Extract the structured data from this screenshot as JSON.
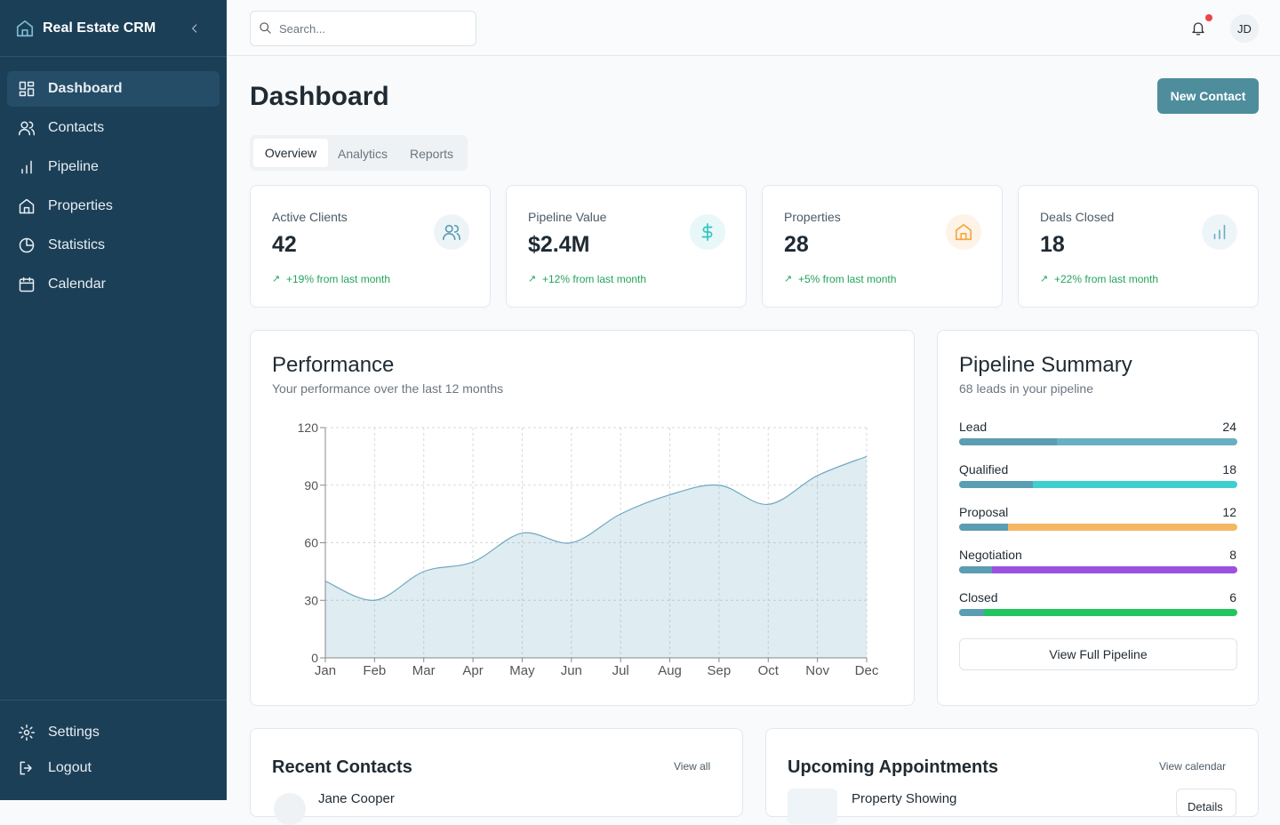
{
  "sidebar": {
    "brand": "Real Estate CRM",
    "nav": [
      "Dashboard",
      "Contacts",
      "Pipeline",
      "Properties",
      "Statistics",
      "Calendar"
    ],
    "footer": [
      "Settings",
      "Logout"
    ]
  },
  "topbar": {
    "search_placeholder": "Search...",
    "avatar": "JD"
  },
  "header": {
    "title": "Dashboard",
    "button": "New Contact"
  },
  "tabs": [
    "Overview",
    "Analytics",
    "Reports"
  ],
  "stats": [
    {
      "label": "Active Clients",
      "value": 42,
      "change": "+19% from last month"
    },
    {
      "label": "Pipeline Value",
      "value": "$2.4M",
      "change": "+12% from last month"
    },
    {
      "label": "Properties",
      "value": 28,
      "change": "+5% from last month"
    },
    {
      "label": "Deals Closed",
      "value": 18,
      "change": "+22% from last month"
    }
  ],
  "chart_data": {
    "type": "area",
    "title": "Performance",
    "subtitle": "Your performance over the last 12 months",
    "categories": [
      "Jan",
      "Feb",
      "Mar",
      "Apr",
      "May",
      "Jun",
      "Jul",
      "Aug",
      "Sep",
      "Oct",
      "Nov",
      "Dec"
    ],
    "values": [
      40,
      30,
      45,
      50,
      65,
      60,
      75,
      85,
      90,
      80,
      95,
      105
    ],
    "color": "#6fa8c2",
    "ylim": [
      0,
      120
    ],
    "yticks": [
      0,
      30,
      60,
      90,
      120
    ],
    "grid": true
  },
  "pipeline": {
    "title": "Pipeline Summary",
    "subtitle": "68 leads in your pipeline",
    "stages": [
      {
        "name": "Lead",
        "count": 24,
        "color": "#6aaec4"
      },
      {
        "name": "Qualified",
        "count": 18,
        "color": "#3ecfcf"
      },
      {
        "name": "Proposal",
        "count": 12,
        "color": "#f5b763"
      },
      {
        "name": "Negotiation",
        "count": 8,
        "color": "#9b51e0"
      },
      {
        "name": "Closed",
        "count": 6,
        "color": "#22c55e"
      }
    ],
    "button": "View Full Pipeline"
  },
  "recent_contacts": {
    "title": "Recent Contacts",
    "link": "View all",
    "items": [
      {
        "name": "Jane Cooper"
      }
    ]
  },
  "appointments": {
    "title": "Upcoming Appointments",
    "link": "View calendar",
    "items": [
      {
        "title": "Property Showing",
        "action": "Details"
      }
    ]
  }
}
